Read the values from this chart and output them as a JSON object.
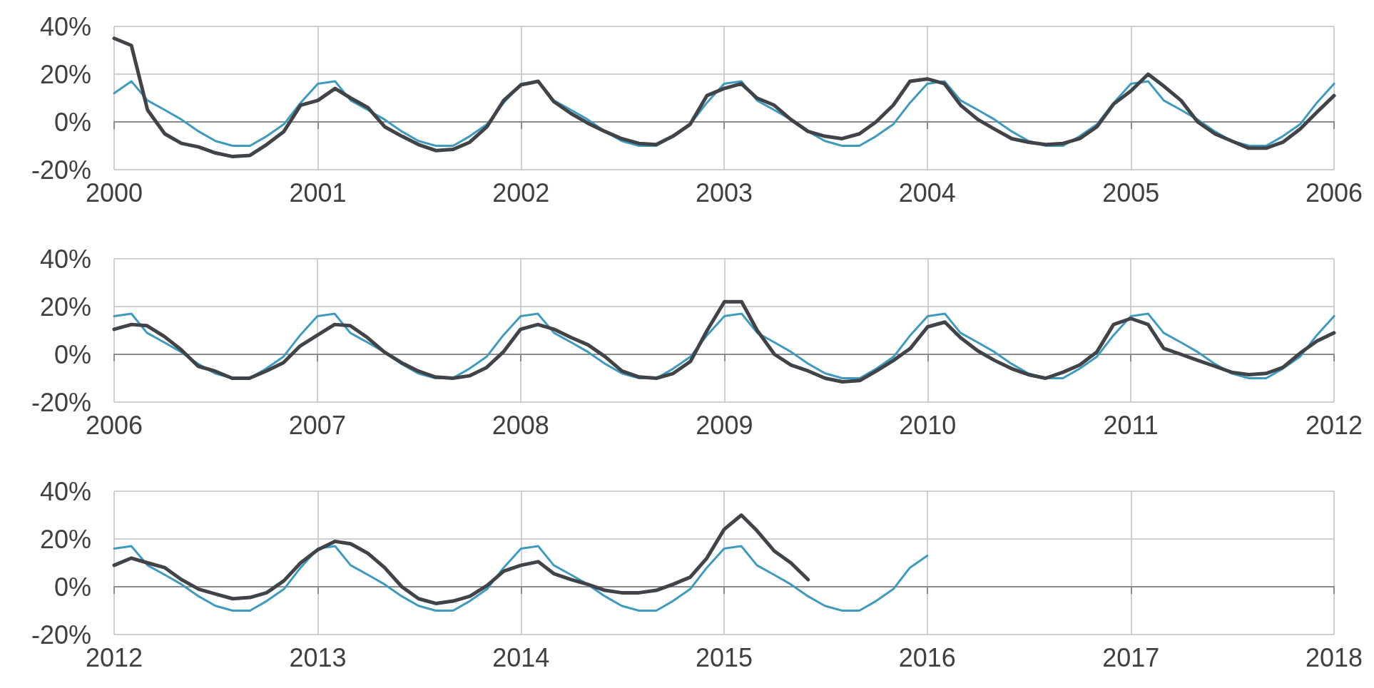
{
  "chart_data": [
    {
      "type": "line",
      "x": [
        "2000-01",
        "2000-02",
        "2000-03",
        "2000-04",
        "2000-05",
        "2000-06",
        "2000-07",
        "2000-08",
        "2000-09",
        "2000-10",
        "2000-11",
        "2000-12",
        "2001-01",
        "2001-02",
        "2001-03",
        "2001-04",
        "2001-05",
        "2001-06",
        "2001-07",
        "2001-08",
        "2001-09",
        "2001-10",
        "2001-11",
        "2001-12",
        "2002-01",
        "2002-02",
        "2002-03",
        "2002-04",
        "2002-05",
        "2002-06",
        "2002-07",
        "2002-08",
        "2002-09",
        "2002-10",
        "2002-11",
        "2002-12",
        "2003-01",
        "2003-02",
        "2003-03",
        "2003-04",
        "2003-05",
        "2003-06",
        "2003-07",
        "2003-08",
        "2003-09",
        "2003-10",
        "2003-11",
        "2003-12",
        "2004-01",
        "2004-02",
        "2004-03",
        "2004-04",
        "2004-05",
        "2004-06",
        "2004-07",
        "2004-08",
        "2004-09",
        "2004-10",
        "2004-11",
        "2004-12",
        "2005-01",
        "2005-02",
        "2005-03",
        "2005-04",
        "2005-05",
        "2005-06",
        "2005-07",
        "2005-08",
        "2005-09",
        "2005-10",
        "2005-11",
        "2005-12",
        "2006-01"
      ],
      "series": [
        {
          "color": "#3e9bbf",
          "values": [
            12,
            17,
            9,
            5,
            1,
            -4,
            -8,
            -10,
            -10,
            -6,
            -1,
            8,
            16,
            17,
            9,
            5,
            1,
            -4,
            -8,
            -10,
            -10,
            -6,
            -1,
            8,
            16,
            17,
            9,
            5,
            1,
            -4,
            -8,
            -10,
            -10,
            -6,
            -1,
            8,
            16,
            17,
            9,
            5,
            1,
            -4,
            -8,
            -10,
            -10,
            -6,
            -1,
            8,
            16,
            17,
            9,
            5,
            1,
            -4,
            -8,
            -10,
            -10,
            -6,
            -1,
            8,
            16,
            17,
            9,
            5,
            1,
            -4,
            -8,
            -10,
            -10,
            -6,
            -1,
            8,
            16
          ]
        },
        {
          "color": "#404448",
          "values": [
            35,
            32,
            5,
            -5,
            -9,
            -10.5,
            -13,
            -14.5,
            -14,
            -9.5,
            -4,
            7,
            9,
            14,
            10,
            6,
            -2,
            -6,
            -9.5,
            -12,
            -11.5,
            -8.5,
            -2,
            9,
            15.5,
            17,
            8.5,
            3.5,
            -0.5,
            -4,
            -7,
            -9,
            -9.5,
            -6,
            -1,
            11,
            14,
            16,
            10,
            7,
            1,
            -4,
            -6,
            -7,
            -5,
            0,
            7,
            17,
            18,
            16,
            7,
            1,
            -3,
            -7,
            -8.5,
            -9.5,
            -9,
            -7,
            -2,
            7.5,
            13,
            20,
            15,
            9,
            0,
            -5,
            -8,
            -11,
            -11,
            -8.5,
            -3,
            4,
            11
          ]
        }
      ],
      "xlim": [
        "2000",
        "2006"
      ],
      "xticks": [
        "2000",
        "2001",
        "2002",
        "2003",
        "2004",
        "2005",
        "2006"
      ],
      "ylim": [
        -20,
        40
      ],
      "yticks": [
        {
          "value": -20,
          "label": "-20%"
        },
        {
          "value": 0,
          "label": "0%"
        },
        {
          "value": 20,
          "label": "20%"
        },
        {
          "value": 40,
          "label": "40%"
        }
      ],
      "grid": true,
      "marker": "none",
      "line_style": "solid"
    },
    {
      "type": "line",
      "x": [
        "2006-01",
        "2006-02",
        "2006-03",
        "2006-04",
        "2006-05",
        "2006-06",
        "2006-07",
        "2006-08",
        "2006-09",
        "2006-10",
        "2006-11",
        "2006-12",
        "2007-01",
        "2007-02",
        "2007-03",
        "2007-04",
        "2007-05",
        "2007-06",
        "2007-07",
        "2007-08",
        "2007-09",
        "2007-10",
        "2007-11",
        "2007-12",
        "2008-01",
        "2008-02",
        "2008-03",
        "2008-04",
        "2008-05",
        "2008-06",
        "2008-07",
        "2008-08",
        "2008-09",
        "2008-10",
        "2008-11",
        "2008-12",
        "2009-01",
        "2009-02",
        "2009-03",
        "2009-04",
        "2009-05",
        "2009-06",
        "2009-07",
        "2009-08",
        "2009-09",
        "2009-10",
        "2009-11",
        "2009-12",
        "2010-01",
        "2010-02",
        "2010-03",
        "2010-04",
        "2010-05",
        "2010-06",
        "2010-07",
        "2010-08",
        "2010-09",
        "2010-10",
        "2010-11",
        "2010-12",
        "2011-01",
        "2011-02",
        "2011-03",
        "2011-04",
        "2011-05",
        "2011-06",
        "2011-07",
        "2011-08",
        "2011-09",
        "2011-10",
        "2011-11",
        "2011-12",
        "2012-01"
      ],
      "series": [
        {
          "color": "#3e9bbf",
          "values": [
            16,
            17,
            9,
            5,
            1,
            -4,
            -8,
            -10,
            -10,
            -6,
            -1,
            8,
            16,
            17,
            9,
            5,
            1,
            -4,
            -8,
            -10,
            -10,
            -6,
            -1,
            8,
            16,
            17,
            9,
            5,
            1,
            -4,
            -8,
            -10,
            -10,
            -6,
            -1,
            8,
            16,
            17,
            9,
            5,
            1,
            -4,
            -8,
            -10,
            -10,
            -6,
            -1,
            8,
            16,
            17,
            9,
            5,
            1,
            -4,
            -8,
            -10,
            -10,
            -6,
            -1,
            8,
            16,
            17,
            9,
            5,
            1,
            -4,
            -8,
            -10,
            -10,
            -6,
            -1,
            8,
            16
          ]
        },
        {
          "color": "#404448",
          "values": [
            10.5,
            12.5,
            12,
            7.5,
            2,
            -5,
            -7,
            -10,
            -10,
            -7,
            -3.5,
            3.5,
            8,
            12.5,
            12,
            7,
            1,
            -3.5,
            -7,
            -9.5,
            -10,
            -9,
            -5.5,
            1,
            10.5,
            12.5,
            10.5,
            7,
            4,
            -1,
            -7,
            -9.5,
            -10,
            -8,
            -3,
            10,
            22,
            22,
            10,
            0,
            -4.5,
            -7,
            -10,
            -11.5,
            -11,
            -7,
            -2.5,
            2.5,
            11.5,
            13.5,
            7,
            1.5,
            -2.5,
            -6,
            -8.5,
            -10,
            -7.5,
            -4.5,
            1,
            12.5,
            15,
            12.5,
            2.5,
            0,
            -2.5,
            -5,
            -7.5,
            -8.5,
            -8,
            -5.5,
            0.5,
            5.5,
            9
          ]
        }
      ],
      "xlim": [
        "2006",
        "2012"
      ],
      "xticks": [
        "2006",
        "2007",
        "2008",
        "2009",
        "2010",
        "2011",
        "2012"
      ],
      "ylim": [
        -20,
        40
      ],
      "yticks": [
        {
          "value": -20,
          "label": "-20%"
        },
        {
          "value": 0,
          "label": "0%"
        },
        {
          "value": 20,
          "label": "20%"
        },
        {
          "value": 40,
          "label": "40%"
        }
      ],
      "grid": true,
      "marker": "none",
      "line_style": "solid"
    },
    {
      "type": "line",
      "x": [
        "2012-01",
        "2012-02",
        "2012-03",
        "2012-04",
        "2012-05",
        "2012-06",
        "2012-07",
        "2012-08",
        "2012-09",
        "2012-10",
        "2012-11",
        "2012-12",
        "2013-01",
        "2013-02",
        "2013-03",
        "2013-04",
        "2013-05",
        "2013-06",
        "2013-07",
        "2013-08",
        "2013-09",
        "2013-10",
        "2013-11",
        "2013-12",
        "2014-01",
        "2014-02",
        "2014-03",
        "2014-04",
        "2014-05",
        "2014-06",
        "2014-07",
        "2014-08",
        "2014-09",
        "2014-10",
        "2014-11",
        "2014-12",
        "2015-01",
        "2015-02",
        "2015-03",
        "2015-04",
        "2015-05",
        "2015-06",
        "2015-07",
        "2015-08",
        "2015-09",
        "2015-10",
        "2015-11",
        "2015-12",
        "2016-01"
      ],
      "series": [
        {
          "color": "#3e9bbf",
          "values": [
            16,
            17,
            9,
            5,
            1,
            -4,
            -8,
            -10,
            -10,
            -6,
            -1,
            8,
            16,
            17,
            9,
            5,
            1,
            -4,
            -8,
            -10,
            -10,
            -6,
            -1,
            8,
            16,
            17,
            9,
            5,
            1,
            -4,
            -8,
            -10,
            -10,
            -6,
            -1,
            8,
            16,
            17,
            9,
            5,
            1,
            -4,
            -8,
            -10,
            -10,
            -6,
            -1,
            8,
            13
          ]
        },
        {
          "color": "#404448",
          "values": [
            9,
            12,
            10,
            8,
            3,
            -1,
            -3,
            -5,
            -4.5,
            -2.5,
            2.5,
            10,
            15.5,
            19,
            18,
            14,
            8,
            0,
            -5,
            -7,
            -6,
            -4,
            0.5,
            6.5,
            9,
            10.5,
            5.5,
            3,
            1,
            -1.5,
            -2.5,
            -2.5,
            -1.5,
            1,
            4,
            12,
            24,
            30,
            23.5,
            15,
            10,
            3,
            null,
            null,
            null,
            null,
            null,
            null,
            null
          ]
        }
      ],
      "xlim": [
        "2012",
        "2018"
      ],
      "xticks": [
        "2012",
        "2013",
        "2014",
        "2015",
        "2016",
        "2017",
        "2018"
      ],
      "ylim": [
        -20,
        40
      ],
      "yticks": [
        {
          "value": -20,
          "label": "-20%"
        },
        {
          "value": 0,
          "label": "0%"
        },
        {
          "value": 20,
          "label": "20%"
        },
        {
          "value": 40,
          "label": "40%"
        }
      ],
      "grid": true,
      "marker": "none",
      "line_style": "solid"
    }
  ]
}
